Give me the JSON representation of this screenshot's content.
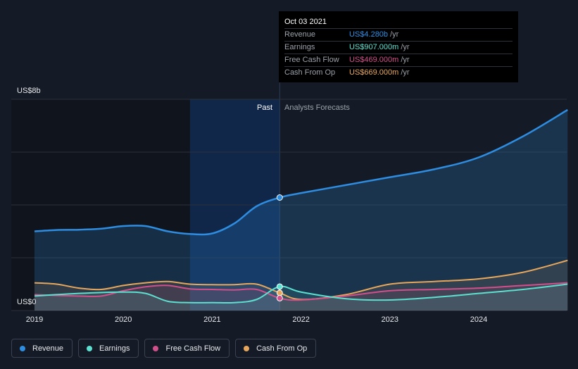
{
  "tooltip": {
    "date": "Oct 03 2021",
    "rows": [
      {
        "label": "Revenue",
        "value": "US$4.280b",
        "unit": "/yr",
        "color": "#2e8de0"
      },
      {
        "label": "Earnings",
        "value": "US$907.000m",
        "unit": "/yr",
        "color": "#5ce0cf"
      },
      {
        "label": "Free Cash Flow",
        "value": "US$469.000m",
        "unit": "/yr",
        "color": "#d14f8a"
      },
      {
        "label": "Cash From Op",
        "value": "US$669.000m",
        "unit": "/yr",
        "color": "#e6a75c"
      }
    ]
  },
  "labels": {
    "y_top": "US$8b",
    "y_bottom": "US$0",
    "past": "Past",
    "forecast": "Analysts Forecasts"
  },
  "legend": [
    {
      "label": "Revenue",
      "color": "#2e8de0"
    },
    {
      "label": "Earnings",
      "color": "#5ce0cf"
    },
    {
      "label": "Free Cash Flow",
      "color": "#d14f8a"
    },
    {
      "label": "Cash From Op",
      "color": "#e6a75c"
    }
  ],
  "chart_data": {
    "type": "line",
    "y_unit": "US$ billions",
    "ylim": [
      0,
      8
    ],
    "x_ticks": [
      "2019",
      "2020",
      "2021",
      "2022",
      "2023",
      "2024"
    ],
    "xlim": [
      2019.0,
      2025.0
    ],
    "past_end": 2021.76,
    "highlight_start": 2020.75,
    "grid": true,
    "series": [
      {
        "name": "Revenue",
        "color": "#2e8de0",
        "points": [
          [
            2019.0,
            3.0
          ],
          [
            2019.25,
            3.05
          ],
          [
            2019.5,
            3.06
          ],
          [
            2019.75,
            3.1
          ],
          [
            2020.0,
            3.2
          ],
          [
            2020.25,
            3.2
          ],
          [
            2020.5,
            3.0
          ],
          [
            2020.75,
            2.9
          ],
          [
            2021.0,
            2.92
          ],
          [
            2021.25,
            3.3
          ],
          [
            2021.5,
            3.95
          ],
          [
            2021.76,
            4.28
          ],
          [
            2022.0,
            4.45
          ],
          [
            2022.5,
            4.75
          ],
          [
            2023.0,
            5.05
          ],
          [
            2023.5,
            5.35
          ],
          [
            2024.0,
            5.8
          ],
          [
            2024.5,
            6.6
          ],
          [
            2025.0,
            7.6
          ]
        ]
      },
      {
        "name": "Earnings",
        "color": "#5ce0cf",
        "points": [
          [
            2019.0,
            0.55
          ],
          [
            2019.5,
            0.65
          ],
          [
            2020.0,
            0.7
          ],
          [
            2020.25,
            0.65
          ],
          [
            2020.5,
            0.35
          ],
          [
            2020.75,
            0.3
          ],
          [
            2021.0,
            0.3
          ],
          [
            2021.25,
            0.3
          ],
          [
            2021.5,
            0.42
          ],
          [
            2021.76,
            0.907
          ],
          [
            2022.0,
            0.7
          ],
          [
            2022.5,
            0.45
          ],
          [
            2023.0,
            0.4
          ],
          [
            2023.5,
            0.5
          ],
          [
            2024.0,
            0.65
          ],
          [
            2024.5,
            0.8
          ],
          [
            2025.0,
            1.0
          ]
        ]
      },
      {
        "name": "Free Cash Flow",
        "color": "#d14f8a",
        "points": [
          [
            2019.0,
            0.6
          ],
          [
            2019.5,
            0.55
          ],
          [
            2019.75,
            0.55
          ],
          [
            2020.0,
            0.75
          ],
          [
            2020.25,
            0.9
          ],
          [
            2020.5,
            0.95
          ],
          [
            2020.75,
            0.82
          ],
          [
            2021.0,
            0.8
          ],
          [
            2021.25,
            0.78
          ],
          [
            2021.5,
            0.8
          ],
          [
            2021.76,
            0.469
          ],
          [
            2022.0,
            0.4
          ],
          [
            2022.5,
            0.55
          ],
          [
            2023.0,
            0.75
          ],
          [
            2023.5,
            0.8
          ],
          [
            2024.0,
            0.85
          ],
          [
            2024.5,
            0.95
          ],
          [
            2025.0,
            1.05
          ]
        ]
      },
      {
        "name": "Cash From Op",
        "color": "#e6a75c",
        "points": [
          [
            2019.0,
            1.05
          ],
          [
            2019.25,
            1.0
          ],
          [
            2019.5,
            0.85
          ],
          [
            2019.75,
            0.8
          ],
          [
            2020.0,
            0.95
          ],
          [
            2020.25,
            1.05
          ],
          [
            2020.5,
            1.1
          ],
          [
            2020.75,
            1.0
          ],
          [
            2021.0,
            0.98
          ],
          [
            2021.25,
            0.98
          ],
          [
            2021.5,
            1.0
          ],
          [
            2021.76,
            0.669
          ],
          [
            2022.0,
            0.42
          ],
          [
            2022.5,
            0.6
          ],
          [
            2023.0,
            1.0
          ],
          [
            2023.5,
            1.1
          ],
          [
            2024.0,
            1.2
          ],
          [
            2024.5,
            1.45
          ],
          [
            2025.0,
            1.9
          ]
        ]
      }
    ]
  }
}
